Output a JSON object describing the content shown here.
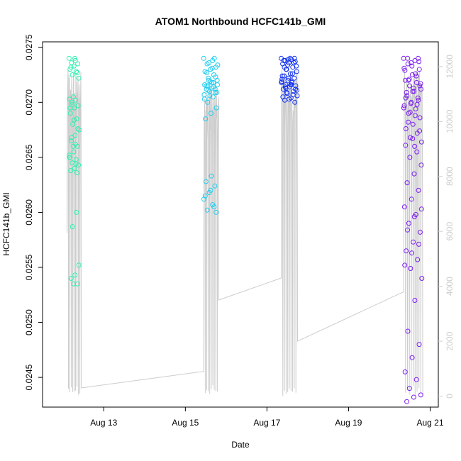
{
  "chart_data": {
    "type": "scatter",
    "title": "ATOM1 Northbound HCFC141b_GMI",
    "xlabel": "Date",
    "ylabel": "HCFC141b_GMI",
    "x_ticks": [
      "Aug 13",
      "Aug 15",
      "Aug 17",
      "Aug 19",
      "Aug 21"
    ],
    "x_tick_days": [
      13,
      15,
      17,
      19,
      21
    ],
    "xlim_days": [
      11.5,
      21.2
    ],
    "y_ticks": [
      0.0245,
      0.025,
      0.0255,
      0.026,
      0.0265,
      0.027,
      0.0275
    ],
    "ylim": [
      0.02423,
      0.02755
    ],
    "y2_ticks": [
      0,
      2000,
      4000,
      6000,
      8000,
      10000,
      12000
    ],
    "y2lim": [
      -400,
      12900
    ],
    "y2_color": "#cccccc",
    "grid": false,
    "point_colors": {
      "Aug 12": "#2ef0b0",
      "Aug 15": "#1ecdf0",
      "Aug 17": "#1030f0",
      "Aug 20": "#7a1ef0"
    },
    "series": [
      {
        "flight": "Aug 12",
        "color": "#2ef0b0",
        "x_range": [
          12.15,
          12.4
        ],
        "y": [
          0.0274,
          0.02738,
          0.02736,
          0.02735,
          0.02733,
          0.0273,
          0.02728,
          0.02725,
          0.02722,
          0.0274,
          0.02732,
          0.02727,
          0.02705,
          0.02703,
          0.02702,
          0.027,
          0.02697,
          0.02695,
          0.0269,
          0.02685,
          0.0268,
          0.02675,
          0.0267,
          0.02665,
          0.0266,
          0.02655,
          0.0265,
          0.02648,
          0.02645,
          0.02643,
          0.0264,
          0.02638,
          0.02636,
          0.0266,
          0.02652,
          0.02662,
          0.02668,
          0.02676,
          0.02684,
          0.02695,
          0.026,
          0.02587,
          0.02552,
          0.02543,
          0.0254,
          0.02535,
          0.02535,
          0.0265,
          0.02644,
          0.02698
        ]
      },
      {
        "flight": "Aug 15",
        "color": "#1ecdf0",
        "x_range": [
          15.45,
          15.8
        ],
        "y": [
          0.0274,
          0.02738,
          0.02735,
          0.02732,
          0.0273,
          0.02728,
          0.02725,
          0.02722,
          0.0272,
          0.02718,
          0.02715,
          0.02712,
          0.0271,
          0.02707,
          0.02705,
          0.027,
          0.02695,
          0.0269,
          0.02685,
          0.0274,
          0.02736,
          0.02734,
          0.02731,
          0.02727,
          0.02723,
          0.02719,
          0.02716,
          0.02714,
          0.02711,
          0.02709,
          0.02633,
          0.02628,
          0.02624,
          0.02618,
          0.02612,
          0.02607,
          0.02602,
          0.026,
          0.0262,
          0.02615,
          0.02605,
          0.0272,
          0.02716,
          0.02713,
          0.02712,
          0.02709,
          0.02706,
          0.02703,
          0.02718,
          0.02715
        ]
      },
      {
        "flight": "Aug 17",
        "color": "#1030f0",
        "x_range": [
          17.35,
          17.75
        ],
        "y": [
          0.0274,
          0.02739,
          0.02738,
          0.02737,
          0.02736,
          0.02735,
          0.02732,
          0.0273,
          0.02728,
          0.02726,
          0.02724,
          0.02722,
          0.0272,
          0.02719,
          0.02718,
          0.02716,
          0.02715,
          0.02714,
          0.02712,
          0.0271,
          0.02708,
          0.02706,
          0.02704,
          0.02702,
          0.027,
          0.02722,
          0.02724,
          0.02726,
          0.0273,
          0.02733,
          0.0274,
          0.02738,
          0.02736,
          0.02734,
          0.02718,
          0.02716,
          0.02714,
          0.02712,
          0.02703,
          0.02705,
          0.02707,
          0.02709,
          0.02711,
          0.02716,
          0.02732,
          0.0274,
          0.02739,
          0.02721,
          0.02719,
          0.02713
        ]
      },
      {
        "flight": "Aug 20",
        "color": "#7a1ef0",
        "x_range": [
          20.35,
          20.8
        ],
        "y": [
          0.0274,
          0.02738,
          0.02735,
          0.0273,
          0.02725,
          0.0272,
          0.02718,
          0.02715,
          0.02712,
          0.0271,
          0.02706,
          0.02702,
          0.027,
          0.02697,
          0.02694,
          0.0269,
          0.02686,
          0.0268,
          0.02676,
          0.02672,
          0.02668,
          0.02664,
          0.0266,
          0.0274,
          0.02737,
          0.02733,
          0.02729,
          0.02724,
          0.02721,
          0.02717,
          0.02713,
          0.02709,
          0.02704,
          0.02699,
          0.02695,
          0.02688,
          0.02682,
          0.02674,
          0.02667,
          0.02661,
          0.02655,
          0.0265,
          0.02643,
          0.02635,
          0.02627,
          0.0262,
          0.02612,
          0.02605,
          0.02598,
          0.0259,
          0.02582,
          0.02573,
          0.02565,
          0.02557,
          0.02549,
          0.0254,
          0.0252,
          0.02492,
          0.0248,
          0.02468,
          0.02455,
          0.02448,
          0.0244,
          0.02434,
          0.02432,
          0.02428,
          0.0274,
          0.02736,
          0.02731,
          0.02726,
          0.0272,
          0.02715,
          0.0271,
          0.02704,
          0.02698,
          0.02691,
          0.02603,
          0.02596,
          0.02584,
          0.02571,
          0.02563,
          0.02552
        ]
      }
    ],
    "altitude_line": {
      "color": "#cccccc",
      "segments": [
        {
          "day_start": 12.1,
          "day_end": 12.45,
          "max": 11900,
          "min": 0
        },
        {
          "day_start": 15.45,
          "day_end": 15.82,
          "max": 11400,
          "min": 0
        },
        {
          "day_start": 17.35,
          "day_end": 17.75,
          "max": 11900,
          "min": 0
        },
        {
          "day_start": 20.35,
          "day_end": 20.82,
          "max": 11900,
          "min": 0
        }
      ],
      "transit": [
        {
          "day": 12.45,
          "value": 300
        },
        {
          "day": 15.45,
          "value": 900
        },
        {
          "day": 15.82,
          "value": 3500
        },
        {
          "day": 17.35,
          "value": 4300
        },
        {
          "day": 17.75,
          "value": 2000
        },
        {
          "day": 20.35,
          "value": 3800
        }
      ]
    }
  }
}
